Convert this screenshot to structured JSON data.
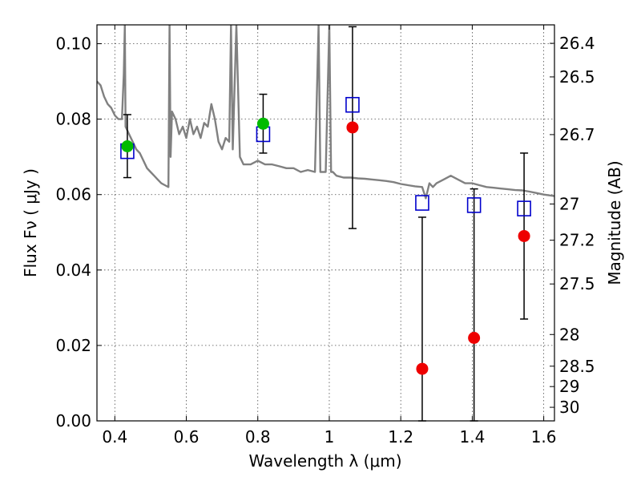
{
  "chart_data": {
    "type": "scatter",
    "xlabel": "Wavelength  λ (μm)",
    "ylabel": "Flux  Fν  ( μJy )",
    "y2label": "Magnitude (AB)",
    "xlim": [
      0.35,
      1.63
    ],
    "ylim": [
      0.0,
      0.105
    ],
    "x_ticks": [
      0.4,
      0.6,
      0.8,
      1.0,
      1.2,
      1.4,
      1.6
    ],
    "x_tick_labels": [
      "0.4",
      "0.6",
      "0.8",
      "1",
      "1.2",
      "1.4",
      "1.6"
    ],
    "y_ticks": [
      0.0,
      0.02,
      0.04,
      0.06,
      0.08,
      0.1
    ],
    "y_tick_labels": [
      "0.00",
      "0.02",
      "0.04",
      "0.06",
      "0.08",
      "0.10"
    ],
    "y2_ticks": [
      {
        "label": "26.4",
        "flux": 0.1001
      },
      {
        "label": "26.5",
        "flux": 0.0912
      },
      {
        "label": "26.7",
        "flux": 0.0759
      },
      {
        "label": "27",
        "flux": 0.0575
      },
      {
        "label": "27.2",
        "flux": 0.0479
      },
      {
        "label": "27.5",
        "flux": 0.0363
      },
      {
        "label": "28",
        "flux": 0.0229
      },
      {
        "label": "28.5",
        "flux": 0.0145
      },
      {
        "label": "29",
        "flux": 0.0091
      },
      {
        "label": "30",
        "flux": 0.0036
      }
    ],
    "grid": true,
    "series": [
      {
        "kind": "model-spectrum",
        "color": "#808080",
        "x": [
          0.35,
          0.36,
          0.37,
          0.38,
          0.39,
          0.4,
          0.41,
          0.42,
          0.425,
          0.428,
          0.43,
          0.44,
          0.45,
          0.46,
          0.47,
          0.48,
          0.49,
          0.5,
          0.51,
          0.52,
          0.53,
          0.54,
          0.55,
          0.553,
          0.556,
          0.56,
          0.57,
          0.58,
          0.59,
          0.6,
          0.61,
          0.62,
          0.63,
          0.64,
          0.65,
          0.66,
          0.67,
          0.68,
          0.69,
          0.7,
          0.71,
          0.72,
          0.725,
          0.73,
          0.74,
          0.75,
          0.76,
          0.78,
          0.8,
          0.82,
          0.84,
          0.86,
          0.88,
          0.9,
          0.92,
          0.94,
          0.96,
          0.97,
          0.975,
          0.98,
          0.99,
          1.0,
          1.005,
          1.01,
          1.02,
          1.04,
          1.06,
          1.08,
          1.1,
          1.12,
          1.14,
          1.16,
          1.18,
          1.2,
          1.22,
          1.24,
          1.26,
          1.27,
          1.28,
          1.29,
          1.3,
          1.32,
          1.34,
          1.36,
          1.38,
          1.4,
          1.42,
          1.44,
          1.46,
          1.48,
          1.5,
          1.52,
          1.54,
          1.56,
          1.58,
          1.6,
          1.63
        ],
        "y": [
          0.09,
          0.089,
          0.086,
          0.084,
          0.083,
          0.081,
          0.08,
          0.08,
          0.092,
          0.105,
          0.078,
          0.076,
          0.074,
          0.072,
          0.071,
          0.069,
          0.067,
          0.066,
          0.065,
          0.064,
          0.063,
          0.0625,
          0.062,
          0.105,
          0.07,
          0.082,
          0.08,
          0.076,
          0.078,
          0.075,
          0.08,
          0.076,
          0.078,
          0.075,
          0.079,
          0.078,
          0.084,
          0.08,
          0.074,
          0.072,
          0.075,
          0.074,
          0.105,
          0.072,
          0.105,
          0.07,
          0.068,
          0.068,
          0.069,
          0.068,
          0.068,
          0.0675,
          0.067,
          0.067,
          0.066,
          0.0665,
          0.066,
          0.105,
          0.066,
          0.066,
          0.066,
          0.105,
          0.066,
          0.066,
          0.065,
          0.0645,
          0.0645,
          0.0643,
          0.0642,
          0.064,
          0.0638,
          0.0636,
          0.0633,
          0.0628,
          0.0625,
          0.0622,
          0.062,
          0.059,
          0.063,
          0.062,
          0.063,
          0.064,
          0.065,
          0.064,
          0.063,
          0.063,
          0.0625,
          0.062,
          0.0618,
          0.0616,
          0.0614,
          0.0612,
          0.0611,
          0.0608,
          0.0604,
          0.06,
          0.0596
        ]
      },
      {
        "kind": "observed-green",
        "color": "#00bb00",
        "x": [
          0.435,
          0.815
        ],
        "y": [
          0.0728,
          0.0788
        ]
      },
      {
        "kind": "observed-red",
        "color": "#ee0000",
        "x": [
          1.065,
          1.26,
          1.405,
          1.545
        ],
        "y": [
          0.0778,
          0.0138,
          0.022,
          0.049
        ]
      },
      {
        "kind": "model-photometry-squares",
        "color": "#0000cc",
        "x": [
          0.435,
          0.815,
          1.065,
          1.26,
          1.405,
          1.545
        ],
        "y": [
          0.0715,
          0.076,
          0.0838,
          0.0578,
          0.0572,
          0.0563
        ]
      }
    ],
    "error_bars": [
      {
        "x": 0.435,
        "low": 0.0645,
        "high": 0.0812
      },
      {
        "x": 0.815,
        "low": 0.071,
        "high": 0.0866
      },
      {
        "x": 1.065,
        "low": 0.051,
        "high": 0.1045
      },
      {
        "x": 1.26,
        "low": 0.0,
        "high": 0.054
      },
      {
        "x": 1.405,
        "low": 0.0,
        "high": 0.0615
      },
      {
        "x": 1.545,
        "low": 0.027,
        "high": 0.071
      }
    ]
  }
}
